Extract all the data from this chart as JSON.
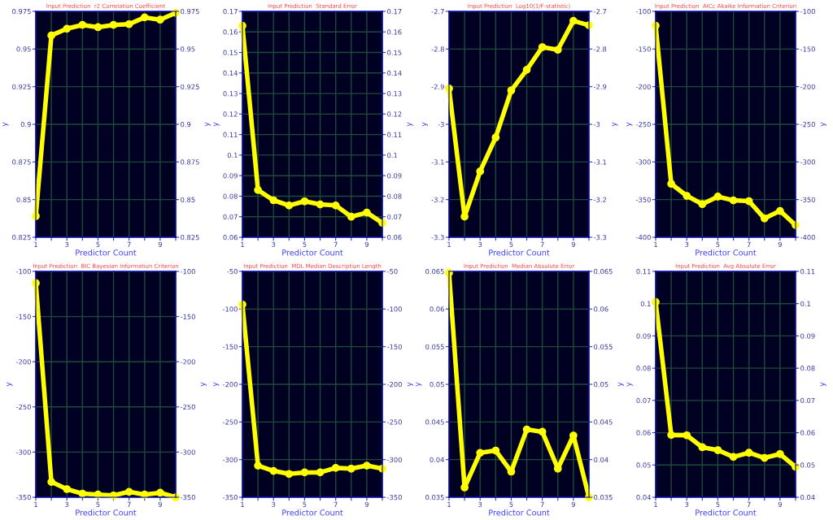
{
  "chart_data": [
    {
      "type": "line",
      "title": "Input Prediction  r2 Correlation Coefficient",
      "xlabel": "Predictor Count",
      "ylabel": "y",
      "y2label": "y",
      "x": [
        1,
        2,
        3,
        4,
        5,
        6,
        7,
        8,
        9,
        10
      ],
      "xlim": [
        1,
        10
      ],
      "xticks": [
        1,
        {
          "value": 2,
          "label": null
        },
        3,
        {
          "value": 4,
          "label": null
        },
        5,
        {
          "value": 6,
          "label": null
        },
        7,
        {
          "value": 8,
          "label": null
        },
        9,
        {
          "value": 10,
          "label": null
        }
      ],
      "ylim": [
        0.825,
        0.975
      ],
      "yticks": [
        0.825,
        0.85,
        0.875,
        0.9,
        0.925,
        0.95,
        0.975
      ],
      "y2lim": [
        0.825,
        0.975
      ],
      "y2ticks": [
        0.825,
        0.85,
        0.875,
        0.9,
        0.925,
        0.95,
        0.975
      ],
      "grid": true,
      "marker": "circle",
      "line_style": "solid",
      "series": [
        {
          "color": "#ffff00",
          "values": [
            0.839,
            0.959,
            0.9635,
            0.966,
            0.9645,
            0.966,
            0.9665,
            0.971,
            0.9695,
            0.974
          ]
        }
      ]
    },
    {
      "type": "line",
      "title": "Input Prediction  Standard Error",
      "xlabel": "Predictor Count",
      "ylabel": "y",
      "y2label": "y",
      "x": [
        1,
        2,
        3,
        4,
        5,
        6,
        7,
        8,
        9,
        10
      ],
      "xlim": [
        1,
        10
      ],
      "xticks": [
        1,
        {
          "value": 2,
          "label": null
        },
        3,
        {
          "value": 4,
          "label": null
        },
        5,
        {
          "value": 6,
          "label": null
        },
        7,
        {
          "value": 8,
          "label": null
        },
        9,
        {
          "value": 10,
          "label": null
        }
      ],
      "ylim": [
        0.06,
        0.17
      ],
      "yticks": [
        0.06,
        0.07,
        0.08,
        0.09,
        0.1,
        0.11,
        0.12,
        0.13,
        0.14,
        0.15,
        0.16,
        0.17
      ],
      "y2lim": [
        0.06,
        0.17
      ],
      "y2ticks": [
        0.06,
        0.07,
        0.08,
        0.09,
        0.1,
        0.11,
        0.12,
        0.13,
        0.14,
        0.15,
        0.16,
        0.17
      ],
      "grid": true,
      "marker": "circle",
      "line_style": "solid",
      "series": [
        {
          "color": "#ffff00",
          "values": [
            0.163,
            0.083,
            0.078,
            0.0755,
            0.0775,
            0.076,
            0.0755,
            0.07,
            0.072,
            0.067
          ]
        }
      ]
    },
    {
      "type": "line",
      "title": "Input Prediction  Log10(1/F-statistic)",
      "xlabel": "Predictor Count",
      "ylabel": "y",
      "y2label": "y",
      "x": [
        1,
        2,
        3,
        4,
        5,
        6,
        7,
        8,
        9,
        10
      ],
      "xlim": [
        1,
        10
      ],
      "xticks": [
        1,
        {
          "value": 2,
          "label": null
        },
        3,
        {
          "value": 4,
          "label": null
        },
        5,
        {
          "value": 6,
          "label": null
        },
        7,
        {
          "value": 8,
          "label": null
        },
        9,
        {
          "value": 10,
          "label": null
        }
      ],
      "ylim": [
        -3.3,
        -2.7
      ],
      "yticks": [
        -3.3,
        -3.2,
        -3.1,
        -3,
        -2.9,
        -2.8,
        -2.7
      ],
      "y2lim": [
        -3.3,
        -2.7
      ],
      "y2ticks": [
        -3.3,
        -3.2,
        -3.1,
        -3,
        -2.9,
        -2.8,
        -2.7
      ],
      "grid": true,
      "marker": "circle",
      "line_style": "solid",
      "series": [
        {
          "color": "#ffff00",
          "values": [
            -2.905,
            -3.245,
            -3.125,
            -3.035,
            -2.91,
            -2.855,
            -2.795,
            -2.802,
            -2.725,
            -2.737
          ]
        }
      ]
    },
    {
      "type": "line",
      "title": "Input Prediction  AICc Akaike Information Criterion",
      "xlabel": "Predictor Count",
      "ylabel": "y",
      "y2label": "y",
      "x": [
        1,
        2,
        3,
        4,
        5,
        6,
        7,
        8,
        9,
        10
      ],
      "xlim": [
        1,
        10
      ],
      "xticks": [
        1,
        {
          "value": 2,
          "label": null
        },
        3,
        {
          "value": 4,
          "label": null
        },
        5,
        {
          "value": 6,
          "label": null
        },
        7,
        {
          "value": 8,
          "label": null
        },
        9,
        {
          "value": 10,
          "label": null
        }
      ],
      "ylim": [
        -400,
        -100
      ],
      "yticks": [
        -400,
        -350,
        -300,
        -250,
        -200,
        -150,
        -100
      ],
      "y2lim": [
        -400,
        -100
      ],
      "y2ticks": [
        -400,
        -350,
        -300,
        -250,
        -200,
        -150,
        -100
      ],
      "grid": true,
      "marker": "circle",
      "line_style": "solid",
      "series": [
        {
          "color": "#ffff00",
          "values": [
            -119,
            -329,
            -345,
            -356,
            -346,
            -351,
            -352,
            -375,
            -365,
            -384
          ]
        }
      ]
    },
    {
      "type": "line",
      "title": "Input Prediction  BIC Bayesian Information Criterion",
      "xlabel": "Predictor Count",
      "ylabel": "y",
      "y2label": "y",
      "x": [
        1,
        2,
        3,
        4,
        5,
        6,
        7,
        8,
        9,
        10
      ],
      "xlim": [
        1,
        10
      ],
      "xticks": [
        1,
        {
          "value": 2,
          "label": null
        },
        3,
        {
          "value": 4,
          "label": null
        },
        5,
        {
          "value": 6,
          "label": null
        },
        7,
        {
          "value": 8,
          "label": null
        },
        9,
        {
          "value": 10,
          "label": null
        }
      ],
      "ylim": [
        -350,
        -100
      ],
      "yticks": [
        -350,
        -300,
        -250,
        -200,
        -150,
        -100
      ],
      "y2lim": [
        -350,
        -100
      ],
      "y2ticks": [
        -350,
        -300,
        -250,
        -200,
        -150,
        -100
      ],
      "grid": true,
      "marker": "circle",
      "line_style": "solid",
      "series": [
        {
          "color": "#ffff00",
          "values": [
            -113,
            -333,
            -341,
            -346,
            -347,
            -348,
            -344,
            -347,
            -345,
            -350
          ]
        }
      ]
    },
    {
      "type": "line",
      "title": "Input Prediction  MDL Median Description Length",
      "xlabel": "Predictor Count",
      "ylabel": "y",
      "y2label": "y",
      "x": [
        1,
        2,
        3,
        4,
        5,
        6,
        7,
        8,
        9,
        10
      ],
      "xlim": [
        1,
        10
      ],
      "xticks": [
        1,
        {
          "value": 2,
          "label": null
        },
        3,
        {
          "value": 4,
          "label": null
        },
        5,
        {
          "value": 6,
          "label": null
        },
        7,
        {
          "value": 8,
          "label": null
        },
        9,
        {
          "value": 10,
          "label": null
        }
      ],
      "ylim": [
        -350,
        -50
      ],
      "yticks": [
        -350,
        -300,
        -250,
        -200,
        -150,
        -100,
        -50
      ],
      "y2lim": [
        -350,
        -50
      ],
      "y2ticks": [
        -350,
        -300,
        -250,
        -200,
        -150,
        -100,
        -50
      ],
      "grid": true,
      "marker": "circle",
      "line_style": "solid",
      "series": [
        {
          "color": "#ffff00",
          "values": [
            -94,
            -308,
            -315,
            -319,
            -317,
            -317,
            -311,
            -312,
            -308,
            -312
          ]
        }
      ]
    },
    {
      "type": "line",
      "title": "Input Prediction  Median Absolute Error",
      "xlabel": "Predictor Count",
      "ylabel": "y",
      "y2label": "y",
      "x": [
        1,
        2,
        3,
        4,
        5,
        6,
        7,
        8,
        9,
        10
      ],
      "xlim": [
        1,
        10
      ],
      "xticks": [
        1,
        {
          "value": 2,
          "label": null
        },
        3,
        {
          "value": 4,
          "label": null
        },
        5,
        {
          "value": 6,
          "label": null
        },
        7,
        {
          "value": 8,
          "label": null
        },
        9,
        {
          "value": 10,
          "label": null
        }
      ],
      "ylim": [
        0.035,
        0.065
      ],
      "yticks": [
        0.035,
        0.04,
        0.045,
        0.05,
        0.055,
        0.06,
        0.065
      ],
      "y2lim": [
        0.035,
        0.065
      ],
      "y2ticks": [
        0.035,
        0.04,
        0.045,
        0.05,
        0.055,
        0.06,
        0.065
      ],
      "grid": true,
      "marker": "circle",
      "line_style": "solid",
      "series": [
        {
          "color": "#ffff00",
          "values": [
            0.0648,
            0.0363,
            0.0409,
            0.0412,
            0.0384,
            0.044,
            0.0437,
            0.0388,
            0.0432,
            0.035
          ]
        }
      ]
    },
    {
      "type": "line",
      "title": "Input Prediction  Avg Absolute Error",
      "xlabel": "Predictor Count",
      "ylabel": "y",
      "y2label": "y",
      "x": [
        1,
        2,
        3,
        4,
        5,
        6,
        7,
        8,
        9,
        10
      ],
      "xlim": [
        1,
        10
      ],
      "xticks": [
        1,
        {
          "value": 2,
          "label": null
        },
        3,
        {
          "value": 4,
          "label": null
        },
        5,
        {
          "value": 6,
          "label": null
        },
        7,
        {
          "value": 8,
          "label": null
        },
        9,
        {
          "value": 10,
          "label": null
        }
      ],
      "ylim": [
        0.04,
        0.11
      ],
      "yticks": [
        0.04,
        0.05,
        0.06,
        0.07,
        0.08,
        0.09,
        0.1,
        0.11
      ],
      "y2lim": [
        0.04,
        0.11
      ],
      "y2ticks": [
        0.04,
        0.05,
        0.06,
        0.07,
        0.08,
        0.09,
        0.1,
        0.11
      ],
      "grid": true,
      "marker": "circle",
      "line_style": "solid",
      "series": [
        {
          "color": "#ffff00",
          "values": [
            0.1005,
            0.0593,
            0.0592,
            0.0555,
            0.0546,
            0.0525,
            0.0538,
            0.0522,
            0.0534,
            0.0494
          ]
        }
      ]
    }
  ]
}
